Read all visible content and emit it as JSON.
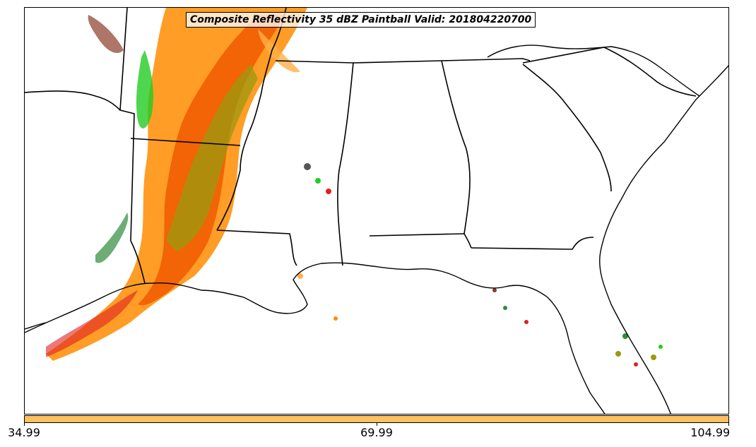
{
  "title": "Composite Reflectivity 35 dBZ Paintball Valid: 201804220700",
  "colorbar": {
    "color": "#FFC060",
    "ticks": [
      "34.99",
      "69.99",
      "104.99"
    ]
  },
  "palette": {
    "orange_red": "#F05A00",
    "orange": "#FF8C00",
    "light_orange": "#FFB04A",
    "olive": "#9A9A10",
    "green": "#22CC22",
    "dark_green": "#2E8B3A",
    "brown": "#8B3A2A",
    "red": "#E02020",
    "gray": "#555555",
    "coast": "#000000"
  }
}
